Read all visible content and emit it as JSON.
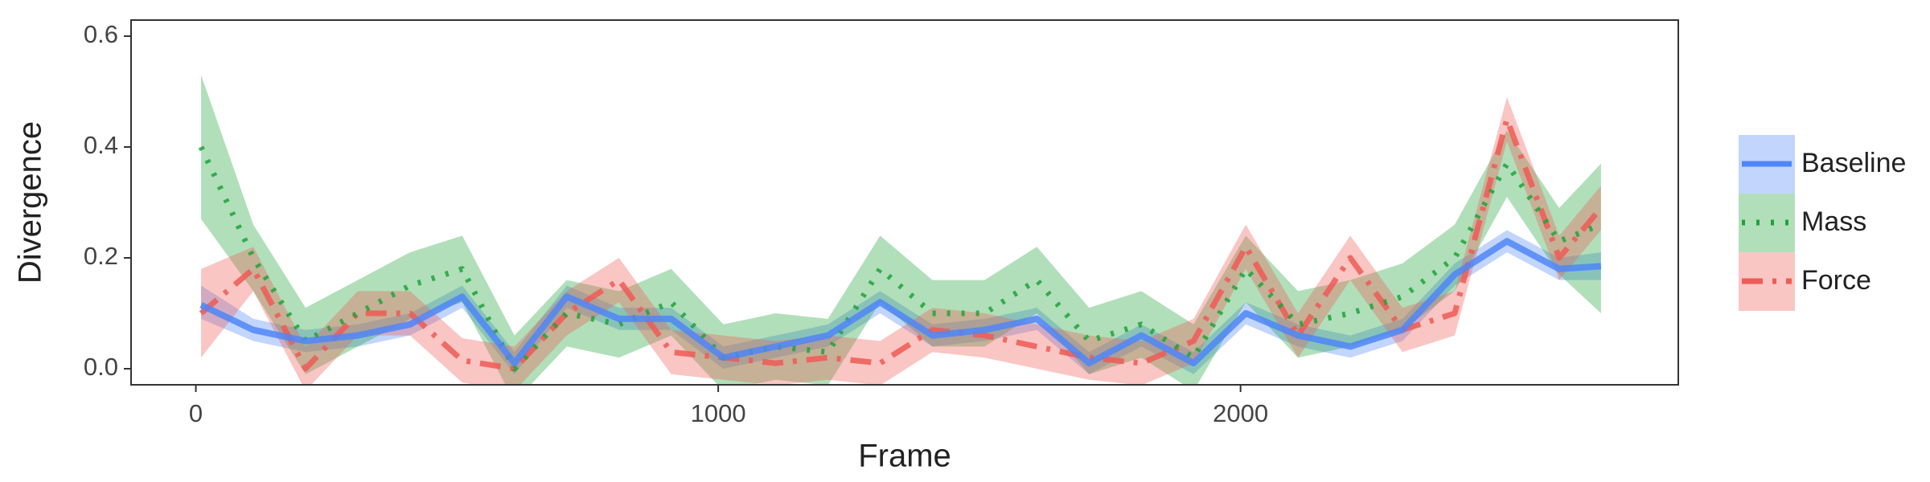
{
  "chart_data": {
    "type": "line",
    "xlabel": "Frame",
    "ylabel": "Divergence",
    "x": [
      10,
      110,
      210,
      310,
      410,
      510,
      610,
      710,
      810,
      910,
      1010,
      1110,
      1210,
      1310,
      1410,
      1510,
      1610,
      1710,
      1810,
      1910,
      2010,
      2110,
      2210,
      2310,
      2410,
      2510,
      2610,
      2690
    ],
    "series": [
      {
        "name": "Baseline",
        "color": "#4f86f7",
        "linestyle": "solid",
        "values": [
          0.115,
          0.07,
          0.05,
          0.06,
          0.08,
          0.13,
          0.01,
          0.13,
          0.09,
          0.09,
          0.02,
          0.04,
          0.06,
          0.12,
          0.06,
          0.07,
          0.09,
          0.01,
          0.06,
          0.01,
          0.1,
          0.06,
          0.04,
          0.07,
          0.17,
          0.23,
          0.18,
          0.185
        ],
        "lower": [
          0.09,
          0.05,
          0.03,
          0.04,
          0.06,
          0.11,
          -0.01,
          0.11,
          0.07,
          0.07,
          0.0,
          0.02,
          0.04,
          0.1,
          0.04,
          0.05,
          0.07,
          -0.01,
          0.04,
          -0.01,
          0.08,
          0.04,
          0.02,
          0.05,
          0.15,
          0.21,
          0.16,
          0.16
        ],
        "upper": [
          0.15,
          0.09,
          0.07,
          0.08,
          0.1,
          0.15,
          0.03,
          0.15,
          0.11,
          0.11,
          0.04,
          0.06,
          0.08,
          0.14,
          0.08,
          0.09,
          0.11,
          0.03,
          0.08,
          0.03,
          0.12,
          0.08,
          0.06,
          0.09,
          0.19,
          0.25,
          0.2,
          0.21
        ]
      },
      {
        "name": "Mass",
        "color": "#1fa33a",
        "linestyle": "dotted",
        "values": [
          0.4,
          0.2,
          0.05,
          0.1,
          0.15,
          0.18,
          0.0,
          0.1,
          0.08,
          0.12,
          0.02,
          0.04,
          0.03,
          0.18,
          0.1,
          0.1,
          0.16,
          0.05,
          0.08,
          0.02,
          0.18,
          0.08,
          0.1,
          0.13,
          0.2,
          0.37,
          0.23,
          0.26
        ],
        "lower": [
          0.27,
          0.14,
          -0.01,
          0.04,
          0.09,
          0.12,
          -0.06,
          0.04,
          0.02,
          0.06,
          -0.04,
          -0.02,
          -0.03,
          0.12,
          0.04,
          0.04,
          0.1,
          -0.01,
          0.02,
          -0.04,
          0.12,
          0.02,
          0.04,
          0.07,
          0.14,
          0.31,
          0.17,
          0.1
        ],
        "upper": [
          0.53,
          0.26,
          0.11,
          0.16,
          0.21,
          0.24,
          0.06,
          0.16,
          0.14,
          0.18,
          0.08,
          0.1,
          0.09,
          0.24,
          0.16,
          0.16,
          0.22,
          0.11,
          0.14,
          0.08,
          0.24,
          0.14,
          0.16,
          0.19,
          0.26,
          0.43,
          0.29,
          0.37
        ]
      },
      {
        "name": "Force",
        "color": "#ef5b55",
        "linestyle": "dashdot",
        "values": [
          0.1,
          0.18,
          0.0,
          0.1,
          0.1,
          0.015,
          0.0,
          0.1,
          0.16,
          0.03,
          0.02,
          0.01,
          0.02,
          0.01,
          0.07,
          0.06,
          0.04,
          0.02,
          0.01,
          0.05,
          0.22,
          0.06,
          0.2,
          0.07,
          0.1,
          0.45,
          0.2,
          0.29
        ],
        "lower": [
          0.02,
          0.14,
          -0.04,
          0.06,
          0.06,
          -0.025,
          -0.04,
          0.06,
          0.12,
          -0.01,
          -0.02,
          -0.03,
          -0.02,
          -0.03,
          0.03,
          0.02,
          0.0,
          -0.02,
          -0.03,
          0.01,
          0.18,
          0.02,
          0.16,
          0.03,
          0.06,
          0.41,
          0.16,
          0.25
        ],
        "upper": [
          0.18,
          0.22,
          0.04,
          0.14,
          0.14,
          0.055,
          0.04,
          0.14,
          0.2,
          0.07,
          0.06,
          0.05,
          0.06,
          0.05,
          0.11,
          0.1,
          0.08,
          0.06,
          0.05,
          0.09,
          0.26,
          0.1,
          0.24,
          0.11,
          0.14,
          0.49,
          0.24,
          0.33
        ]
      }
    ],
    "xlim": [
      -124,
      2838
    ],
    "ylim": [
      -0.029,
      0.629
    ],
    "xticks": [
      0,
      1000,
      2000
    ],
    "yticks": [
      {
        "value": 0,
        "label": "0.0"
      },
      0.2,
      0.4,
      0.6
    ],
    "grid": false,
    "legend": "right"
  }
}
